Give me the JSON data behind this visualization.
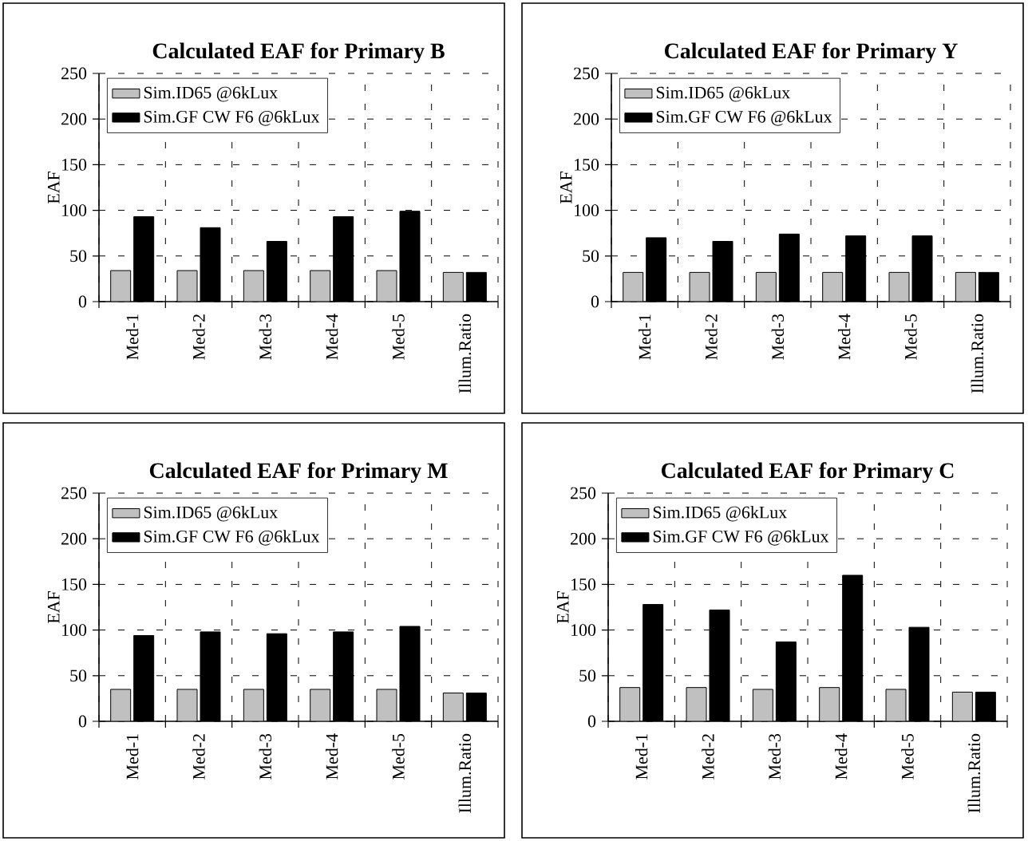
{
  "chart_data": [
    {
      "type": "bar",
      "title": "Calculated EAF  for Primary B",
      "ylabel": "EAF",
      "categories": [
        "Med-1",
        "Med-2",
        "Med-3",
        "Med-4",
        "Med-5",
        "Illum.Ratio"
      ],
      "series": [
        {
          "name": "Sim.ID65 @6kLux",
          "color": "#c0c0c0",
          "values": [
            34,
            34,
            34,
            34,
            34,
            32
          ]
        },
        {
          "name": "Sim.GF CW F6 @6kLux",
          "color": "#000000",
          "values": [
            93,
            81,
            66,
            93,
            99,
            32
          ]
        }
      ],
      "ylim": [
        0,
        250
      ],
      "yticks": [
        0,
        50,
        100,
        150,
        200,
        250
      ],
      "grid": true,
      "legend": "top left"
    },
    {
      "type": "bar",
      "title": "Calculated EAF  for Primary Y",
      "ylabel": "EAF",
      "categories": [
        "Med-1",
        "Med-2",
        "Med-3",
        "Med-4",
        "Med-5",
        "Illum.Ratio"
      ],
      "series": [
        {
          "name": "Sim.ID65 @6kLux",
          "color": "#c0c0c0",
          "values": [
            32,
            32,
            32,
            32,
            32,
            32
          ]
        },
        {
          "name": "Sim.GF CW F6 @6kLux",
          "color": "#000000",
          "values": [
            70,
            66,
            74,
            72,
            72,
            32
          ]
        }
      ],
      "ylim": [
        0,
        250
      ],
      "yticks": [
        0,
        50,
        100,
        150,
        200,
        250
      ],
      "grid": true,
      "legend": "top left"
    },
    {
      "type": "bar",
      "title": "Calculated EAF  for Primary M",
      "ylabel": "EAF",
      "categories": [
        "Med-1",
        "Med-2",
        "Med-3",
        "Med-4",
        "Med-5",
        "Illum.Ratio"
      ],
      "series": [
        {
          "name": "Sim.ID65 @6kLux",
          "color": "#c0c0c0",
          "values": [
            35,
            35,
            35,
            35,
            35,
            31
          ]
        },
        {
          "name": "Sim.GF CW F6 @6kLux",
          "color": "#000000",
          "values": [
            94,
            98,
            96,
            98,
            104,
            31
          ]
        }
      ],
      "ylim": [
        0,
        250
      ],
      "yticks": [
        0,
        50,
        100,
        150,
        200,
        250
      ],
      "grid": true,
      "legend": "top left"
    },
    {
      "type": "bar",
      "title": "Calculated EAF  for Primary C",
      "ylabel": "EAF",
      "categories": [
        "Med-1",
        "Med-2",
        "Med-3",
        "Med-4",
        "Med-5",
        "Illum.Ratio"
      ],
      "series": [
        {
          "name": "Sim.ID65 @6kLux",
          "color": "#c0c0c0",
          "values": [
            37,
            37,
            35,
            37,
            35,
            32
          ]
        },
        {
          "name": "Sim.GF CW F6 @6kLux",
          "color": "#000000",
          "values": [
            128,
            122,
            87,
            160,
            103,
            32
          ]
        }
      ],
      "ylim": [
        0,
        250
      ],
      "yticks": [
        0,
        50,
        100,
        150,
        200,
        250
      ],
      "grid": true,
      "legend": "top left"
    }
  ]
}
